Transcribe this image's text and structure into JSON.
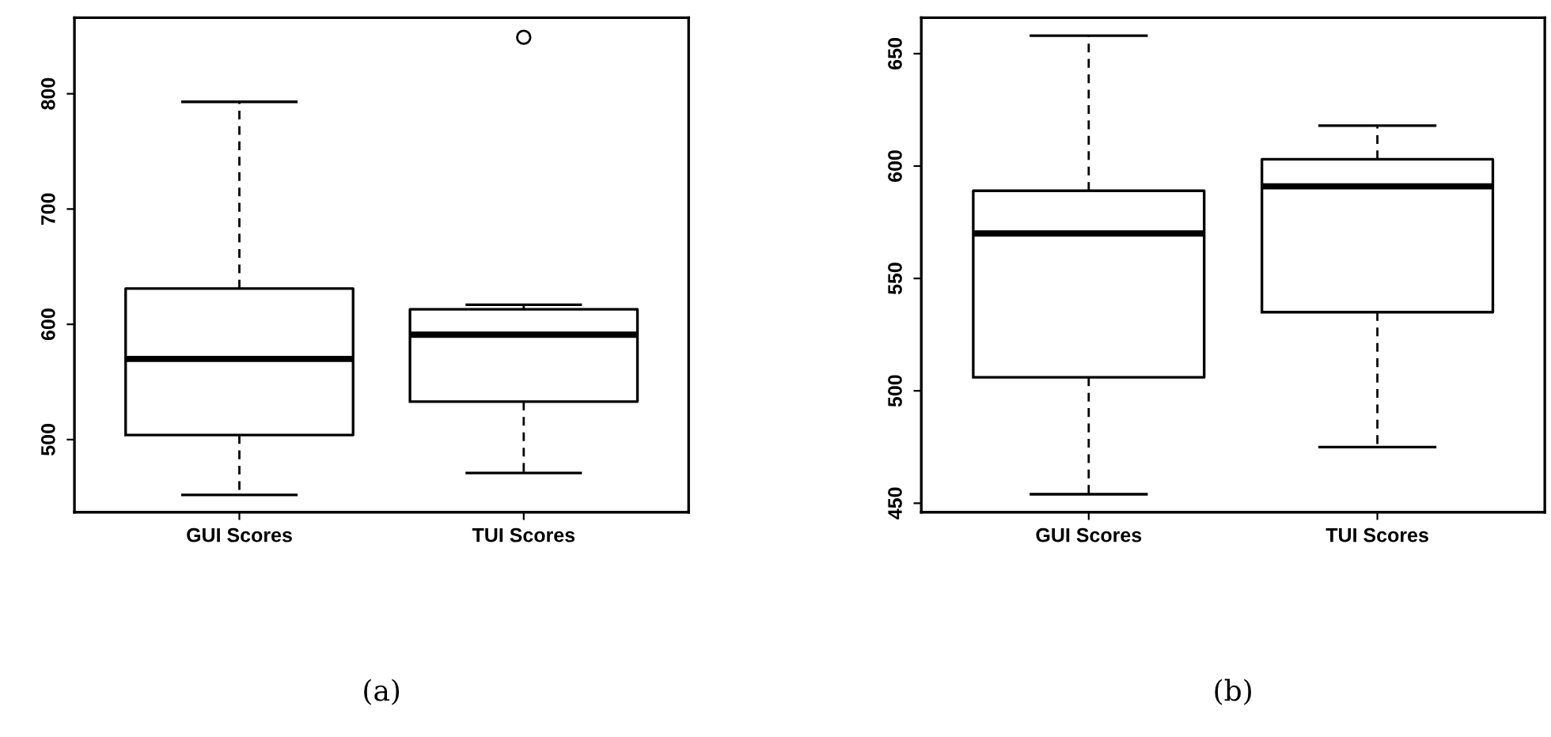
{
  "chart_data": [
    {
      "type": "box",
      "categories": [
        "GUI Scores",
        "TUI Scores"
      ],
      "ylim": [
        437,
        866
      ],
      "yticks": [
        500,
        600,
        700,
        800
      ],
      "annotations": [
        "(a)"
      ],
      "boxes": [
        {
          "low": 452,
          "q1": 504,
          "median": 570,
          "q3": 631,
          "high": 793
        },
        {
          "low": 471,
          "q1": 533,
          "median": 591,
          "q3": 613,
          "high": 617,
          "outliers": [
            849
          ]
        }
      ]
    },
    {
      "type": "box",
      "categories": [
        "GUI Scores",
        "TUI Scores"
      ],
      "ylim": [
        446,
        666
      ],
      "yticks": [
        450,
        500,
        550,
        600,
        650
      ],
      "annotations": [
        "(b)"
      ],
      "boxes": [
        {
          "low": 454,
          "q1": 506,
          "median": 570,
          "q3": 589,
          "high": 658
        },
        {
          "low": 475,
          "q1": 535,
          "median": 591,
          "q3": 603,
          "high": 618
        }
      ]
    }
  ]
}
